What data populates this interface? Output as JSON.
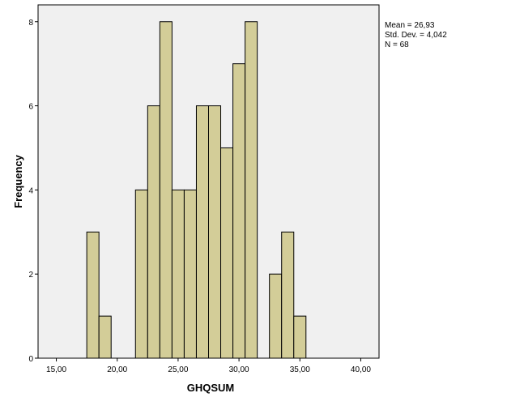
{
  "chart_data": {
    "type": "bar",
    "subtype": "histogram",
    "xlabel": "GHQSUM",
    "ylabel": "Frequency",
    "x_ticks": [
      "15,00",
      "20,00",
      "25,00",
      "30,00",
      "35,00",
      "40,00"
    ],
    "x_tick_values": [
      15,
      20,
      25,
      30,
      35,
      40
    ],
    "y_ticks": [
      "0",
      "2",
      "4",
      "6",
      "8"
    ],
    "y_tick_values": [
      0,
      2,
      4,
      6,
      8
    ],
    "xlim": [
      13.5,
      41.5
    ],
    "ylim": [
      0,
      8.4
    ],
    "bin_width": 1,
    "bins": [
      {
        "start": 17.5,
        "end": 18.5,
        "count": 3
      },
      {
        "start": 18.5,
        "end": 19.5,
        "count": 1
      },
      {
        "start": 21.5,
        "end": 22.5,
        "count": 4
      },
      {
        "start": 22.5,
        "end": 23.5,
        "count": 6
      },
      {
        "start": 23.5,
        "end": 24.5,
        "count": 8
      },
      {
        "start": 24.5,
        "end": 25.5,
        "count": 4
      },
      {
        "start": 25.5,
        "end": 26.5,
        "count": 4
      },
      {
        "start": 26.5,
        "end": 27.5,
        "count": 6
      },
      {
        "start": 27.5,
        "end": 28.5,
        "count": 6
      },
      {
        "start": 28.5,
        "end": 29.5,
        "count": 5
      },
      {
        "start": 29.5,
        "end": 30.5,
        "count": 7
      },
      {
        "start": 30.5,
        "end": 31.5,
        "count": 8
      },
      {
        "start": 32.5,
        "end": 33.5,
        "count": 2
      },
      {
        "start": 33.5,
        "end": 34.5,
        "count": 3
      },
      {
        "start": 34.5,
        "end": 35.5,
        "count": 1
      }
    ],
    "bar_color": "#d3cd98",
    "plot_background": "#f0f0f0",
    "grid": false,
    "legend": "none",
    "stats": {
      "mean": "Mean = 26,93",
      "std_dev": "Std. Dev. = 4,042",
      "n": "N = 68"
    }
  }
}
